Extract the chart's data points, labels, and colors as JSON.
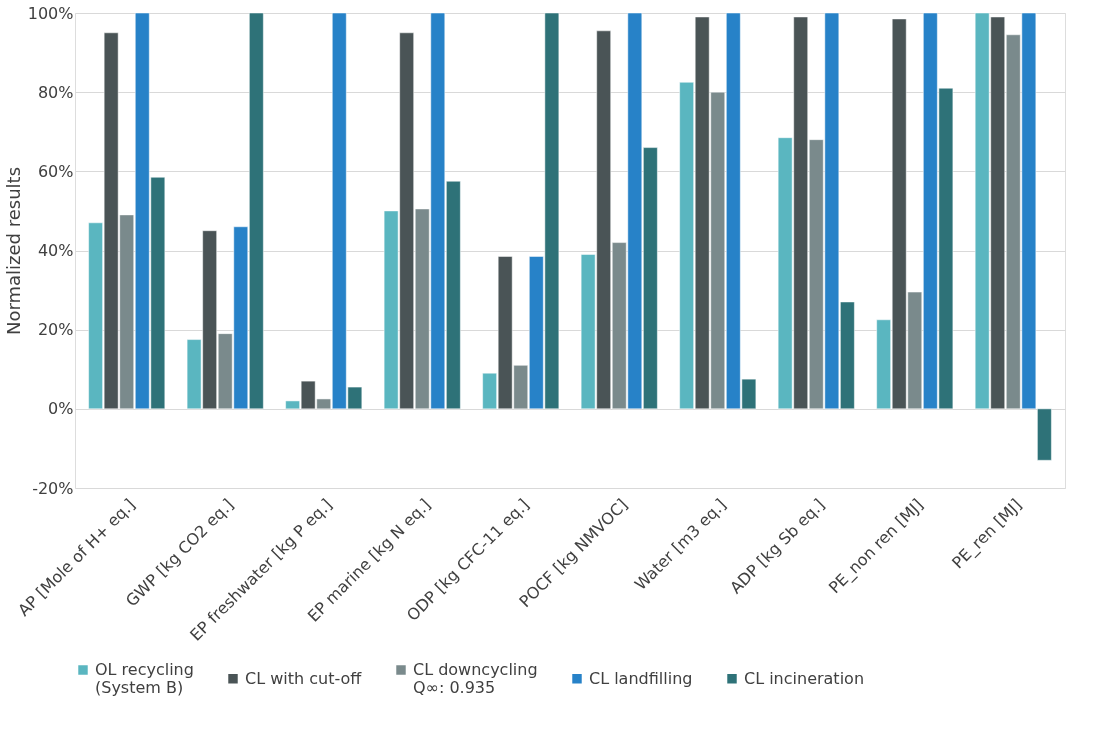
{
  "chart_data": {
    "type": "bar",
    "ylabel": "Normalized results",
    "categories": [
      "AP [Mole of H+ eq.]",
      "GWP [kg CO2 eq.]",
      "EP freshwater [kg P eq.]",
      "EP marine [kg N eq.]",
      "ODP [kg CFC-11 eq.]",
      "POCF [kg NMVOC]",
      "Water [m3 eq.]",
      "ADP [kg Sb eq.]",
      "PE_non ren [MJ]",
      "PE_ren [MJ]"
    ],
    "series": [
      {
        "name": "OL recycling\n(System B)",
        "color": "#5ab6c0",
        "values": [
          47,
          17.5,
          2,
          50,
          9,
          39,
          82.5,
          68.5,
          22.5,
          100
        ]
      },
      {
        "name": "CL with cut-off",
        "color": "#4a5456",
        "values": [
          95,
          45,
          7,
          95,
          38.5,
          95.5,
          99,
          99,
          98.5,
          99
        ]
      },
      {
        "name": "CL downcycling\nQ∞: 0.935",
        "color": "#7a8a8c",
        "values": [
          49,
          19,
          2.5,
          50.5,
          11,
          42,
          80,
          68,
          29.5,
          94.5
        ]
      },
      {
        "name": "CL landfilling",
        "color": "#2782c8",
        "values": [
          100,
          46,
          100,
          100,
          38.5,
          100,
          100,
          100,
          100,
          100
        ]
      },
      {
        "name": "CL incineration",
        "color": "#2e7278",
        "values": [
          58.5,
          100,
          5.5,
          57.5,
          100,
          66,
          7.5,
          27,
          81,
          -13
        ]
      }
    ],
    "ylim": [
      -20,
      100
    ],
    "yticks": [
      {
        "value": -20,
        "label": "-20%"
      },
      {
        "value": 0,
        "label": "0%"
      },
      {
        "value": 20,
        "label": "20%"
      },
      {
        "value": 40,
        "label": "40%"
      },
      {
        "value": 60,
        "label": "60%"
      },
      {
        "value": 80,
        "label": "80%"
      },
      {
        "value": 100,
        "label": "100%"
      }
    ],
    "grid": "y",
    "legend": "bottom"
  }
}
